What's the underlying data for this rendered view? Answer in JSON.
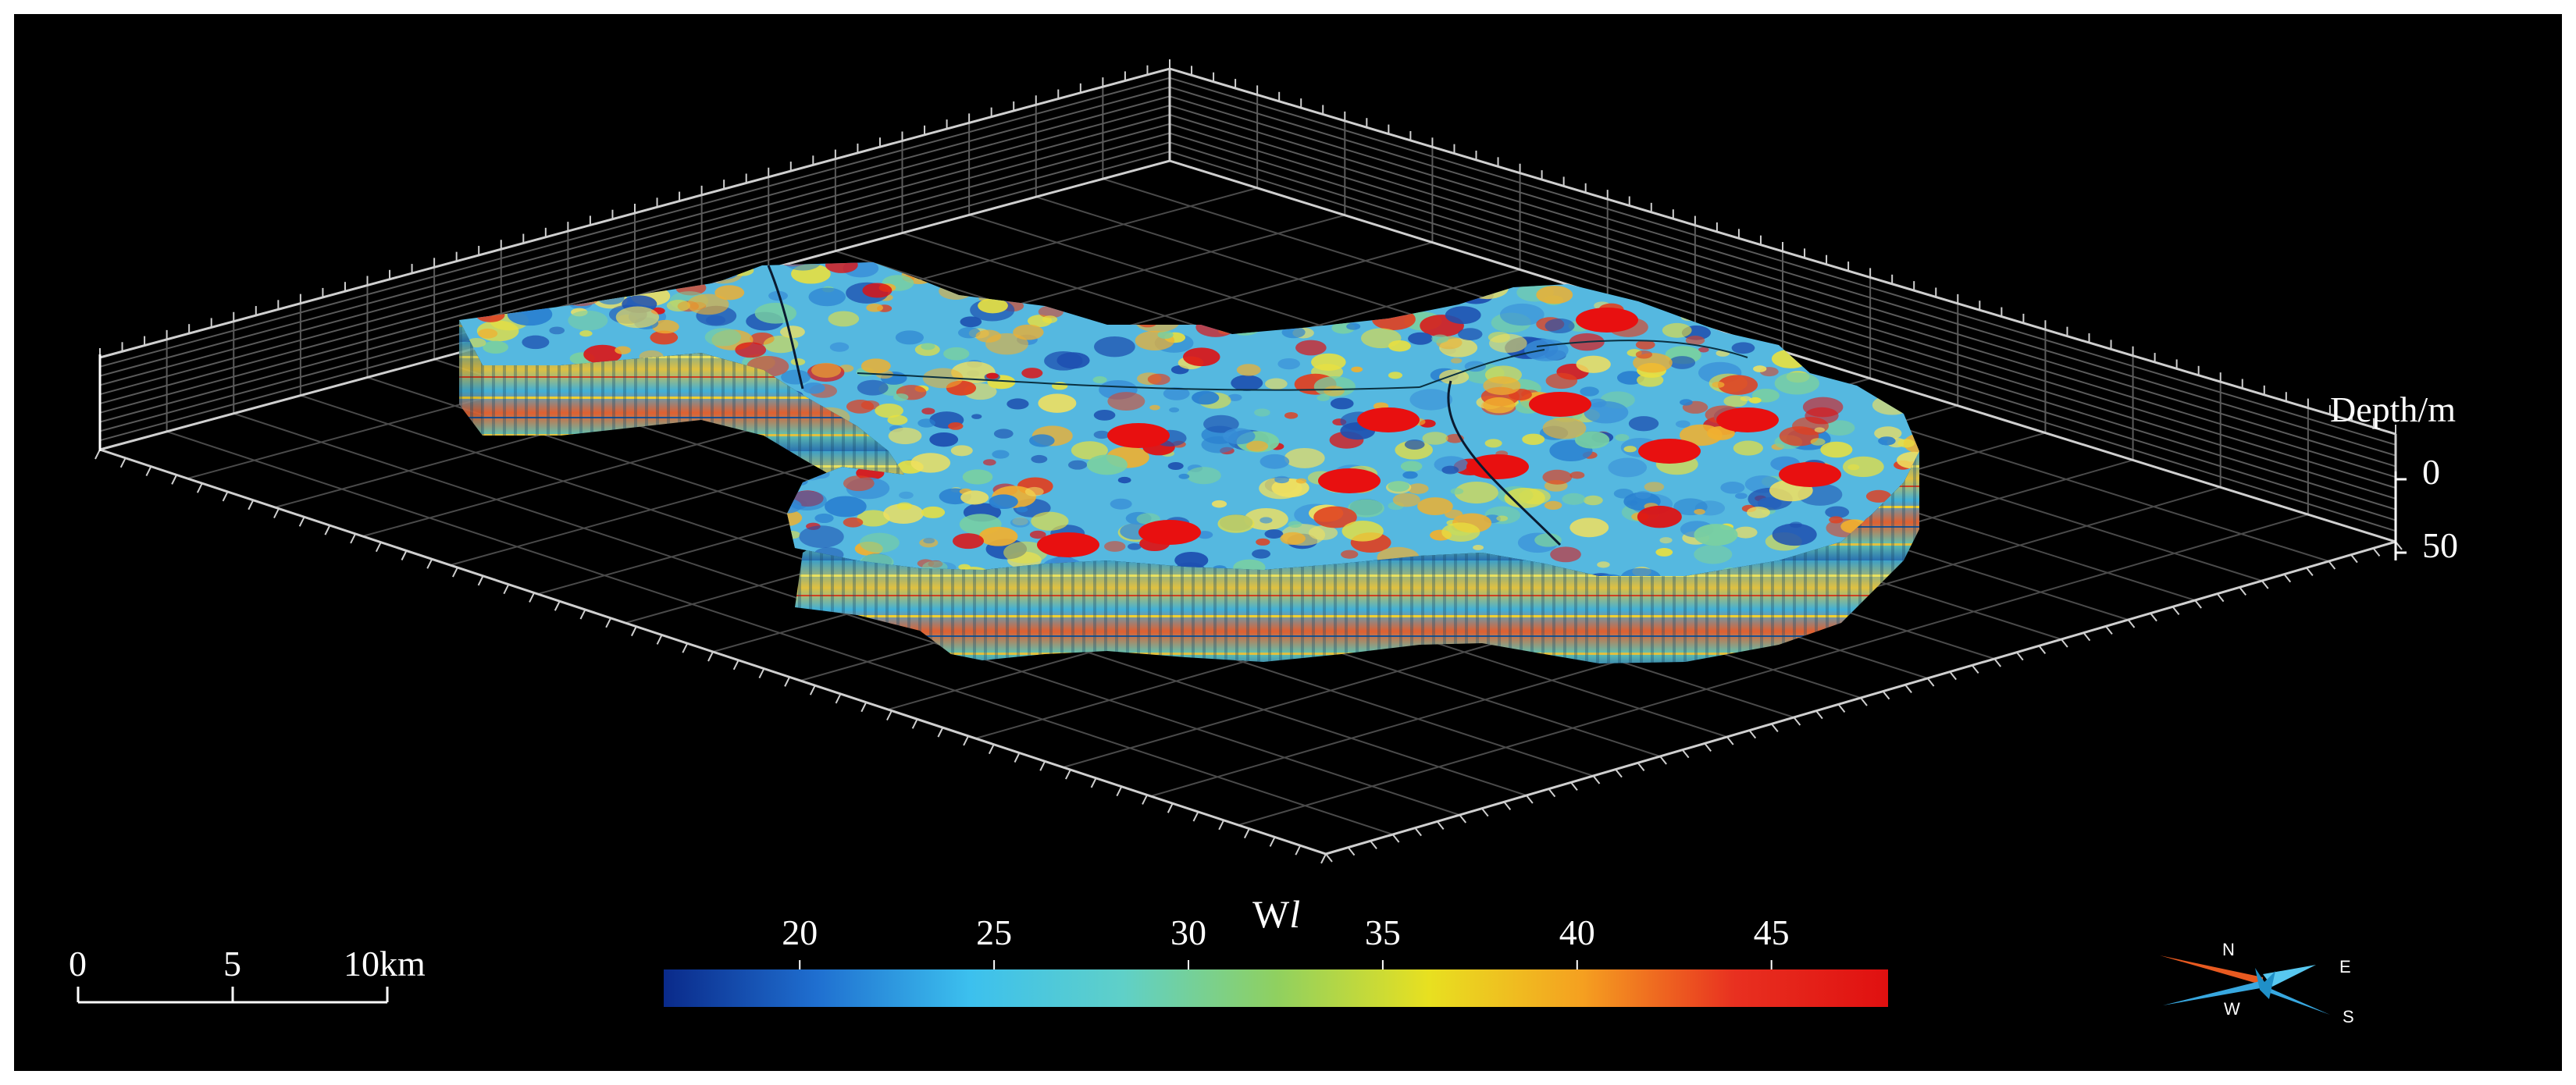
{
  "axis": {
    "depth_label": "Depth/m",
    "depth_ticks": [
      "0",
      "50"
    ]
  },
  "colorbar": {
    "title_prefix": "W",
    "title_italic": "l",
    "ticks": [
      "20",
      "25",
      "30",
      "35",
      "40",
      "45"
    ],
    "tick_values": [
      20,
      25,
      30,
      35,
      40,
      45
    ],
    "range": [
      16.5,
      48
    ],
    "colors": [
      "#0a2a8a",
      "#1f6fd0",
      "#3cc0ee",
      "#5fd0c8",
      "#8fd060",
      "#e8e020",
      "#f5a020",
      "#e83020",
      "#e01010"
    ]
  },
  "scalebar": {
    "ticks": [
      "0",
      "5",
      "10km"
    ]
  },
  "compass": {
    "n": "N",
    "e": "E",
    "w": "W",
    "s": "S"
  }
}
